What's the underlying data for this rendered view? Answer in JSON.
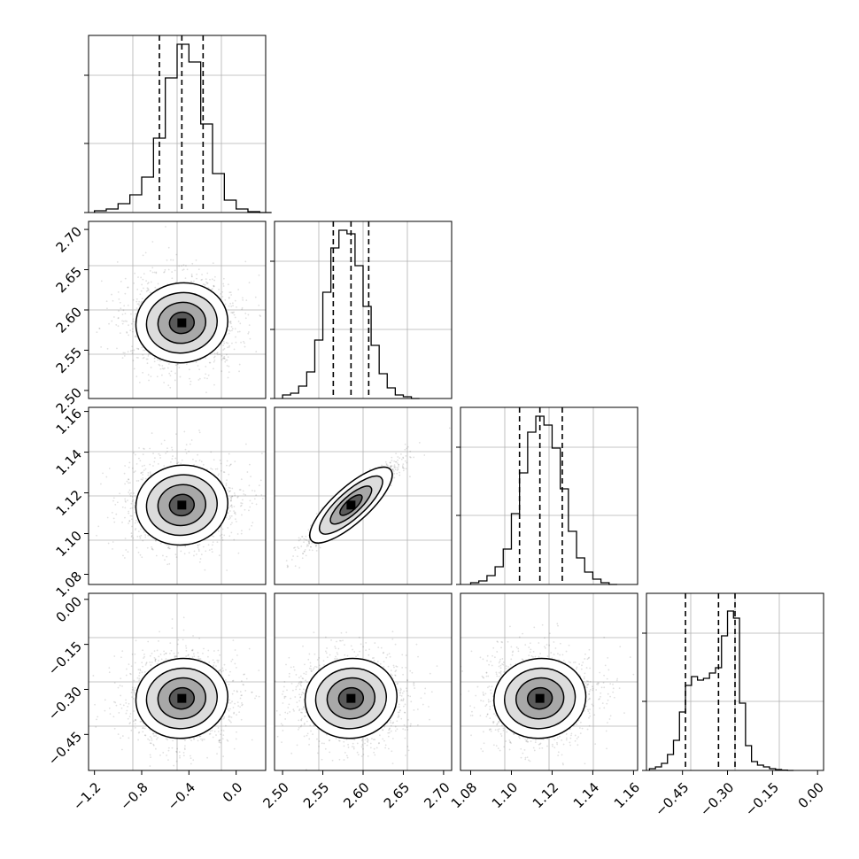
{
  "chart_data": [
    {
      "type": "histogram",
      "panel": "1-1",
      "xlim": [
        -1.25,
        0.25
      ],
      "quantiles": [
        -0.65,
        -0.46,
        -0.28
      ],
      "bins": [
        -1.2,
        -1.1,
        -1.0,
        -0.9,
        -0.8,
        -0.7,
        -0.6,
        -0.5,
        -0.4,
        -0.3,
        -0.2,
        -0.1,
        0.0,
        0.1,
        0.2
      ],
      "counts": [
        0.01,
        0.02,
        0.05,
        0.1,
        0.2,
        0.42,
        0.76,
        0.95,
        0.85,
        0.5,
        0.22,
        0.07,
        0.02,
        0.005,
        0.0
      ]
    },
    {
      "type": "scatter-density",
      "panel": "2-1",
      "xlim": [
        -1.25,
        0.25
      ],
      "ylim": [
        2.49,
        2.71
      ],
      "center": [
        -0.46,
        2.584
      ],
      "yticks": [
        2.5,
        2.55,
        2.6,
        2.65,
        2.7
      ],
      "ytick_labels": [
        "2.50",
        "2.55",
        "2.60",
        "2.65",
        "2.70"
      ]
    },
    {
      "type": "histogram",
      "panel": "2-2",
      "xlim": [
        2.49,
        2.71
      ],
      "quantiles": [
        2.563,
        2.585,
        2.607
      ],
      "bins": [
        2.5,
        2.51,
        2.52,
        2.53,
        2.54,
        2.55,
        2.56,
        2.57,
        2.58,
        2.59,
        2.6,
        2.61,
        2.62,
        2.63,
        2.64,
        2.65,
        2.66
      ],
      "counts": [
        0.02,
        0.03,
        0.07,
        0.15,
        0.33,
        0.6,
        0.85,
        0.95,
        0.93,
        0.75,
        0.52,
        0.3,
        0.14,
        0.06,
        0.02,
        0.01,
        0.0
      ]
    },
    {
      "type": "scatter-density",
      "panel": "3-1",
      "xlim": [
        -1.25,
        0.25
      ],
      "ylim": [
        1.075,
        1.162
      ],
      "center": [
        -0.46,
        1.114
      ],
      "yticks": [
        1.08,
        1.1,
        1.12,
        1.14,
        1.16
      ],
      "ytick_labels": [
        "1.08",
        "1.10",
        "1.12",
        "1.14",
        "1.16"
      ]
    },
    {
      "type": "scatter-density",
      "panel": "3-2",
      "xlim": [
        2.49,
        2.71
      ],
      "ylim": [
        1.075,
        1.162
      ],
      "center": [
        2.585,
        1.114
      ],
      "correlation": "positive"
    },
    {
      "type": "histogram",
      "panel": "3-3",
      "xlim": [
        1.075,
        1.162
      ],
      "quantiles": [
        1.104,
        1.114,
        1.125
      ],
      "bins": [
        1.08,
        1.084,
        1.088,
        1.092,
        1.096,
        1.1,
        1.104,
        1.108,
        1.112,
        1.116,
        1.12,
        1.124,
        1.128,
        1.132,
        1.136,
        1.14,
        1.144,
        1.148
      ],
      "counts": [
        0.01,
        0.02,
        0.05,
        0.1,
        0.2,
        0.4,
        0.63,
        0.86,
        0.95,
        0.9,
        0.77,
        0.54,
        0.3,
        0.15,
        0.07,
        0.03,
        0.01,
        0.0
      ]
    },
    {
      "type": "scatter-density",
      "panel": "4-1",
      "xlim": [
        -1.25,
        0.25
      ],
      "ylim": [
        -0.57,
        0.02
      ],
      "center": [
        -0.46,
        -0.33
      ],
      "yticks": [
        0.0,
        -0.15,
        -0.3,
        -0.45
      ],
      "ytick_labels": [
        "0.00",
        "−0.15",
        "−0.30",
        "−0.45"
      ],
      "xticks": [
        -1.2,
        -0.8,
        -0.4,
        0.0
      ],
      "xtick_labels": [
        "−1.2",
        "−0.8",
        "−0.4",
        "0.0"
      ]
    },
    {
      "type": "scatter-density",
      "panel": "4-2",
      "xlim": [
        2.49,
        2.71
      ],
      "ylim": [
        -0.57,
        0.02
      ],
      "center": [
        2.585,
        -0.33
      ],
      "xticks": [
        2.5,
        2.55,
        2.6,
        2.65,
        2.7
      ],
      "xtick_labels": [
        "2.50",
        "2.55",
        "2.60",
        "2.65",
        "2.70"
      ]
    },
    {
      "type": "scatter-density",
      "panel": "4-3",
      "xlim": [
        1.075,
        1.162
      ],
      "ylim": [
        -0.57,
        0.02
      ],
      "center": [
        1.114,
        -0.33
      ],
      "xticks": [
        1.08,
        1.1,
        1.12,
        1.14,
        1.16
      ],
      "xtick_labels": [
        "1.08",
        "1.10",
        "1.12",
        "1.14",
        "1.16"
      ]
    },
    {
      "type": "histogram",
      "panel": "4-4",
      "xlim": [
        -0.57,
        0.02
      ],
      "quantiles": [
        -0.44,
        -0.33,
        -0.275
      ],
      "bins": [
        -0.56,
        -0.54,
        -0.52,
        -0.5,
        -0.48,
        -0.46,
        -0.44,
        -0.42,
        -0.4,
        -0.38,
        -0.36,
        -0.34,
        -0.32,
        -0.3,
        -0.28,
        -0.26,
        -0.24,
        -0.22,
        -0.2,
        -0.18,
        -0.16,
        -0.14,
        -0.12,
        -0.1
      ],
      "counts": [
        0.01,
        0.02,
        0.04,
        0.09,
        0.17,
        0.33,
        0.48,
        0.53,
        0.51,
        0.52,
        0.55,
        0.58,
        0.76,
        0.9,
        0.86,
        0.38,
        0.14,
        0.05,
        0.03,
        0.02,
        0.01,
        0.005,
        0.002,
        0.0
      ],
      "xticks": [
        -0.45,
        -0.3,
        -0.15,
        0.0
      ],
      "xtick_labels": [
        "−0.45",
        "−0.30",
        "−0.15",
        "0.00"
      ]
    }
  ]
}
